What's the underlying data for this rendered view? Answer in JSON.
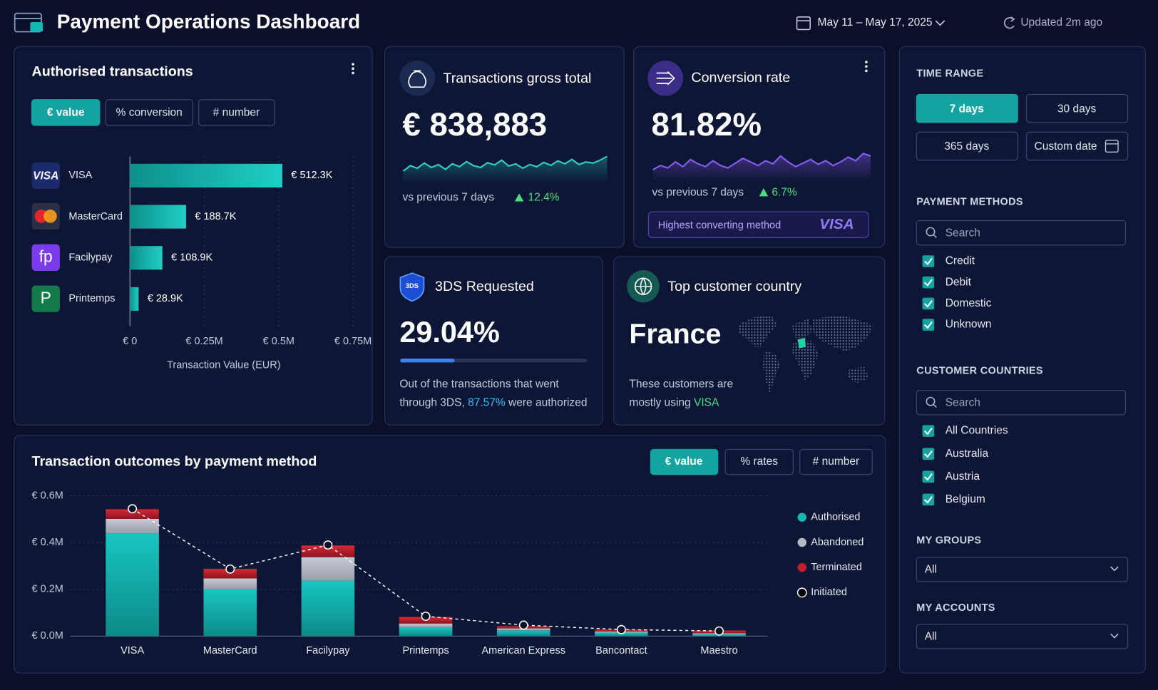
{
  "header": {
    "title": "Payment Operations Dashboard",
    "date_range": "May 11 – May 17, 2025",
    "updated": "Updated 2m ago"
  },
  "authorised": {
    "title": "Authorised transactions",
    "tabs": [
      "€ value",
      "% conversion",
      "# number"
    ],
    "active_tab": 0,
    "logos": {
      "visa": "VISA",
      "facilypay": "fp",
      "printemps": "P"
    },
    "chart": {
      "type": "bar",
      "categories": [
        "VISA",
        "MasterCard",
        "Facilypay",
        "Printemps"
      ],
      "values": [
        512300,
        188700,
        108900,
        28900
      ],
      "value_labels": [
        "€ 512.3K",
        "€ 188.7K",
        "€ 108.9K",
        "€ 28.9K"
      ],
      "color": "#14b8b0",
      "xlim": [
        0,
        750000
      ],
      "xticks": [
        {
          "value": 0,
          "label": "€ 0"
        },
        {
          "value": 250000,
          "label": "€ 0.25M"
        },
        {
          "value": 500000,
          "label": "€ 0.5M"
        },
        {
          "value": 750000,
          "label": "€ 0.75M"
        }
      ],
      "xlabel": "Transaction Value (EUR)",
      "grid": true
    }
  },
  "gross_total": {
    "title": "Transactions gross total",
    "value": "€ 838,883",
    "compare": "vs previous 7 days",
    "change": "12.4%",
    "color": "#2dd4bf",
    "trend": [
      40,
      55,
      48,
      62,
      50,
      58,
      45,
      60,
      52,
      66,
      55,
      50,
      63,
      57,
      70,
      54,
      60,
      48,
      58,
      52,
      64,
      56,
      68,
      60,
      72,
      58,
      65,
      62,
      70,
      80
    ]
  },
  "conversion": {
    "title": "Conversion rate",
    "value": "81.82%",
    "compare": "vs previous 7 days",
    "change": "6.7%",
    "highlight_label": "Highest converting method",
    "highlight_value": "VISA",
    "color": "#8b5cf6",
    "trend": [
      45,
      52,
      48,
      58,
      50,
      62,
      55,
      50,
      60,
      52,
      48,
      56,
      64,
      58,
      52,
      60,
      55,
      68,
      58,
      50,
      56,
      62,
      54,
      60,
      52,
      58,
      66,
      60,
      72,
      68
    ]
  },
  "three_ds": {
    "title": "3DS Requested",
    "badge": "3DS",
    "value": 29.04,
    "value_label": "29.04%",
    "description": [
      "Out of the transactions that went",
      "through 3DS,",
      "87.57%",
      "were authorized"
    ]
  },
  "top_country": {
    "title": "Top customer country",
    "value": "France",
    "description": [
      "These customers are",
      "mostly using",
      "VISA"
    ]
  },
  "outcomes": {
    "title": "Transaction outcomes by payment method",
    "tabs": [
      "€ value",
      "% rates",
      "# number"
    ],
    "active_tab": 0,
    "chart": {
      "type": "stacked_bar",
      "categories": [
        "VISA",
        "MasterCard",
        "Facilypay",
        "Printemps",
        "American Express",
        "Bancontact",
        "Maestro"
      ],
      "series": [
        {
          "name": "Authorised",
          "color": "#14b8b0",
          "values": [
            440000,
            200000,
            237000,
            38000,
            25000,
            15000,
            8000
          ]
        },
        {
          "name": "Abandoned",
          "color": "#b5b9c6",
          "values": [
            62000,
            47000,
            101000,
            16000,
            8000,
            5000,
            4000
          ]
        },
        {
          "name": "Terminated",
          "color": "#c41e2a",
          "values": [
            41000,
            41000,
            50000,
            28000,
            10000,
            8000,
            12000
          ]
        },
        {
          "name": "Initiated",
          "color": "#ffffff",
          "type": "line",
          "values": [
            545000,
            287000,
            390000,
            85000,
            47000,
            28000,
            22000
          ]
        }
      ],
      "ylim": [
        0,
        600000
      ],
      "yticks": [
        {
          "value": 0,
          "label": "€ 0.0M"
        },
        {
          "value": 200000,
          "label": "€ 0.2M"
        },
        {
          "value": 400000,
          "label": "€ 0.4M"
        },
        {
          "value": 600000,
          "label": "€ 0.6M"
        }
      ],
      "grid": true,
      "legend": "right"
    }
  },
  "filters": {
    "time_range": {
      "title": "TIME RANGE",
      "options": [
        "7 days",
        "30 days",
        "365 days",
        "Custom date"
      ],
      "active": 0
    },
    "payment_methods": {
      "title": "PAYMENT METHODS",
      "search": "Search",
      "options": [
        "Credit",
        "Debit",
        "Domestic",
        "Unknown"
      ]
    },
    "customer_countries": {
      "title": "CUSTOMER COUNTRIES",
      "search": "Search",
      "options": [
        "All Countries",
        "Australia",
        "Austria",
        "Belgium"
      ]
    },
    "my_groups": {
      "title": "MY GROUPS",
      "value": "All"
    },
    "my_accounts": {
      "title": "MY ACCOUNTS",
      "value": "All"
    }
  }
}
